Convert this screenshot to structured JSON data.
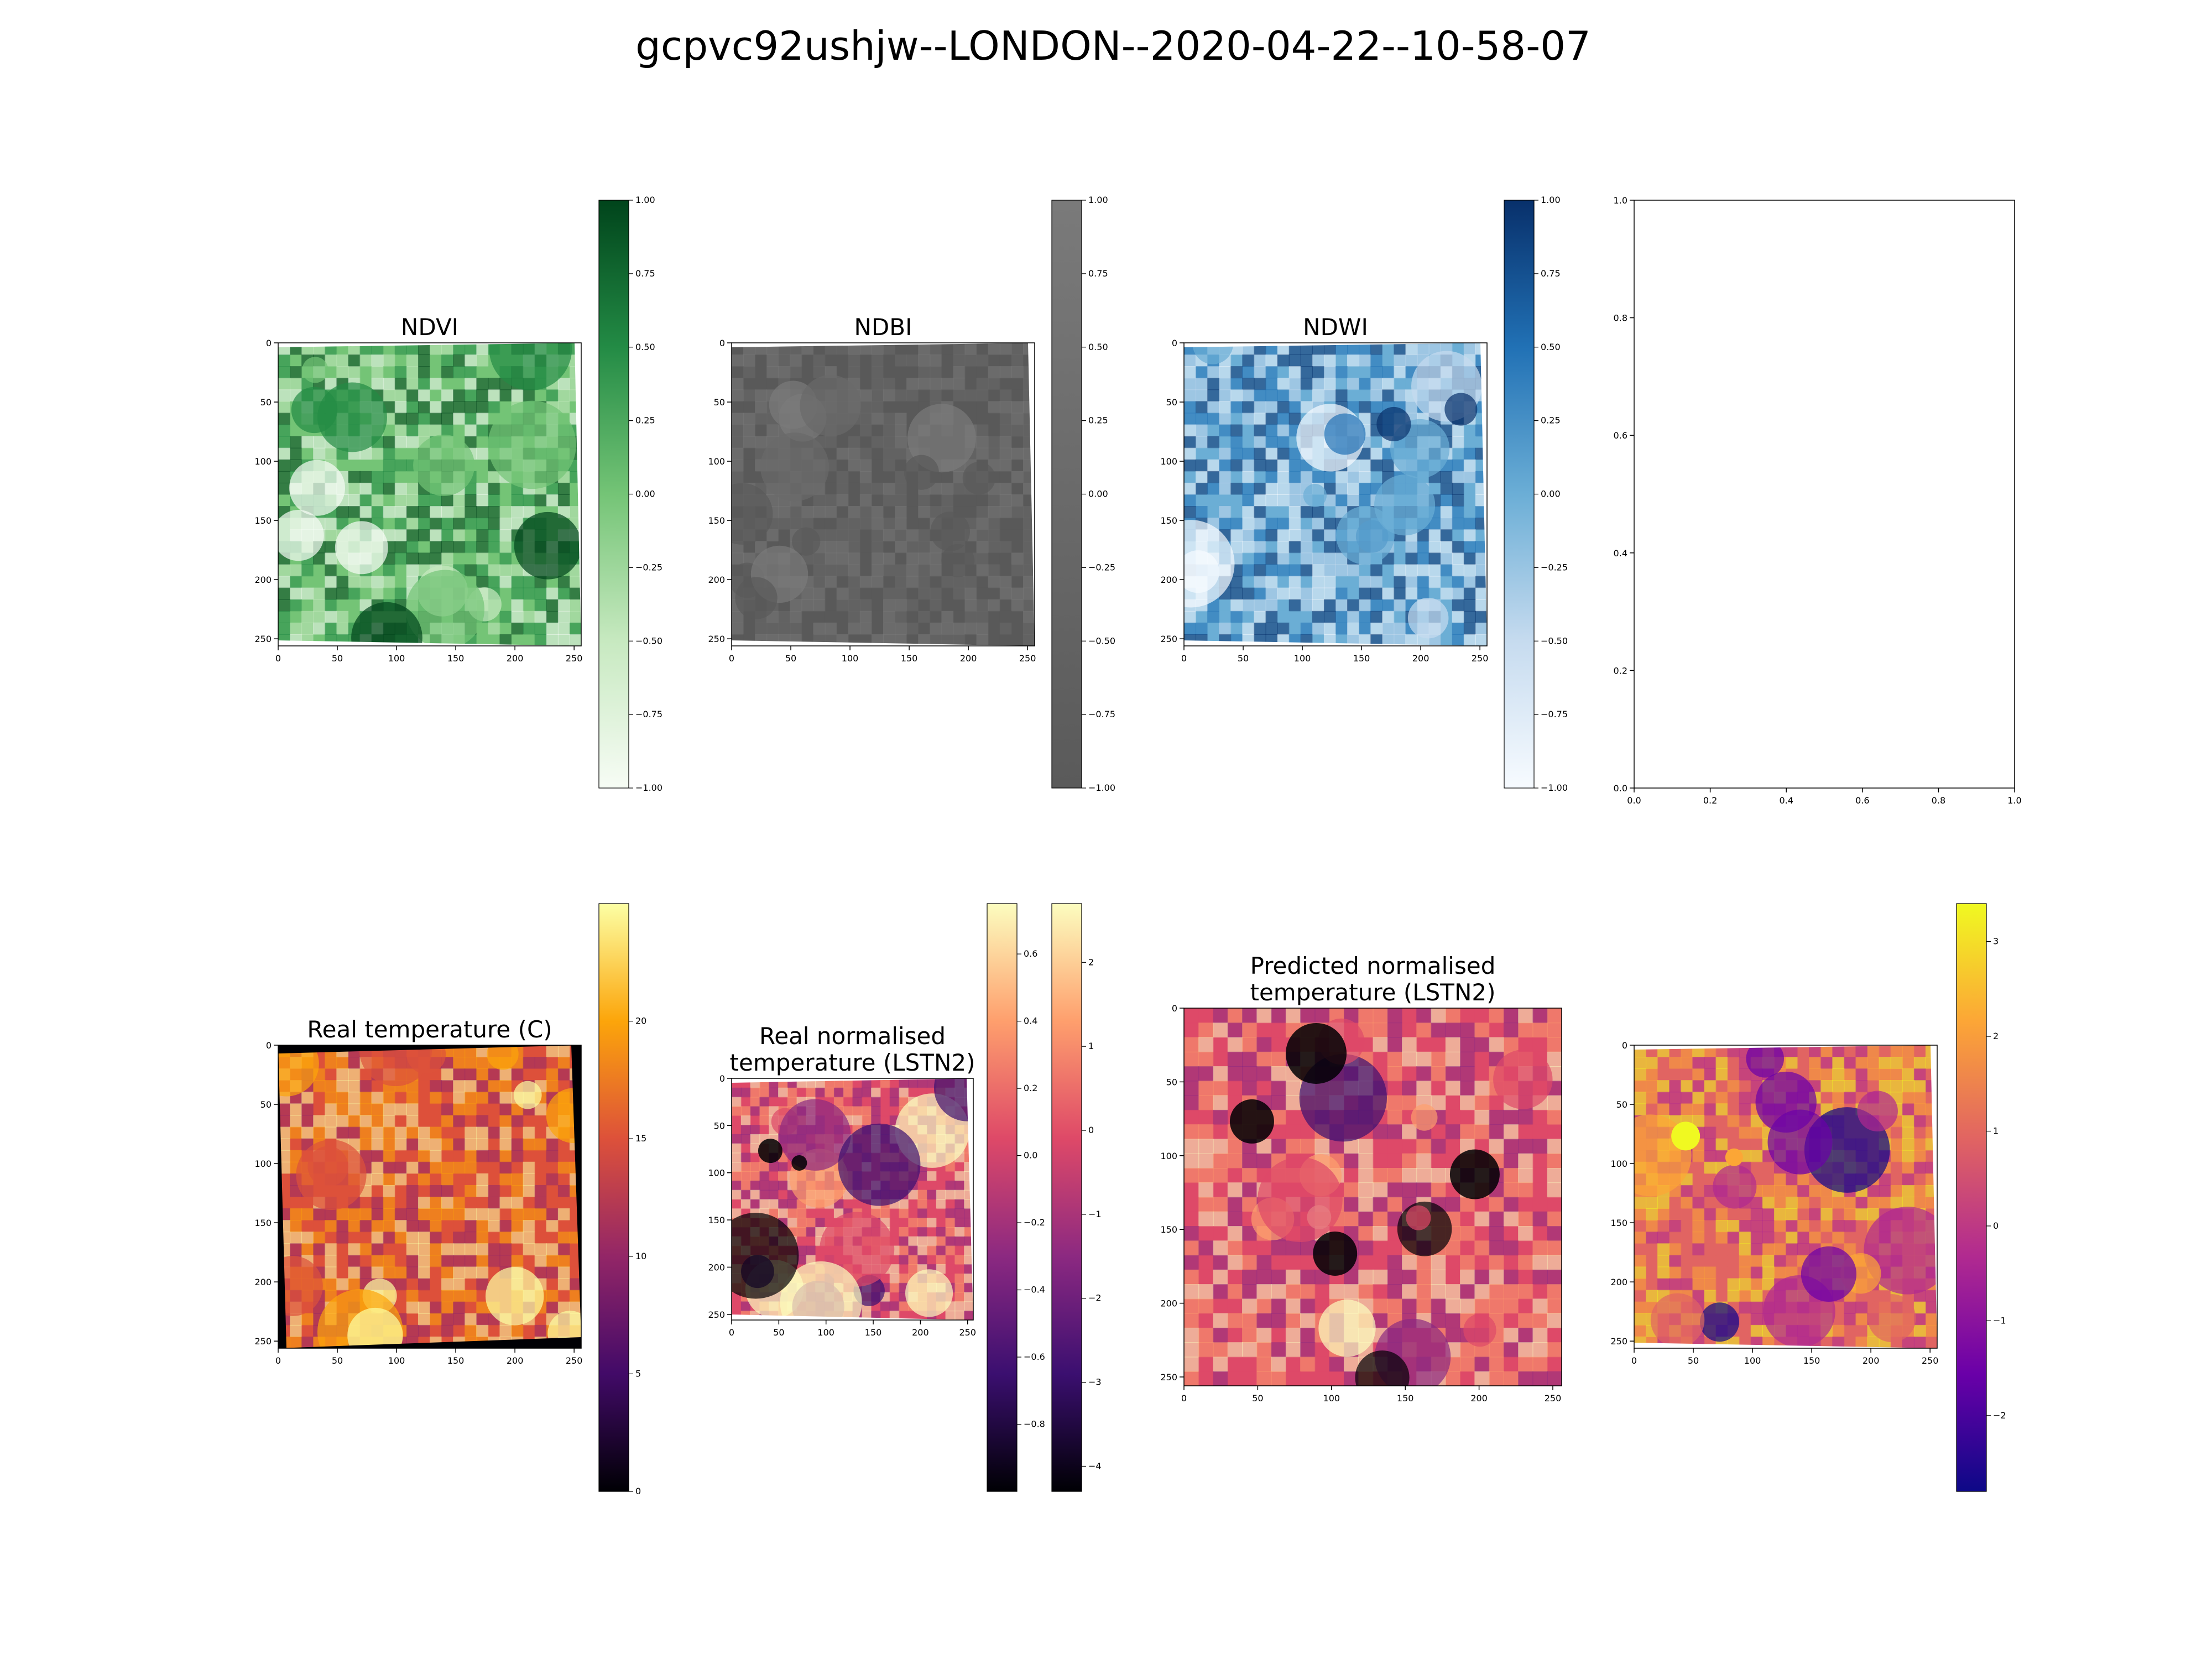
{
  "suptitle": "gcpvc92ushjw--LONDON--2020-04-22--10-58-07",
  "chart_data": [
    {
      "type": "heatmap",
      "title": "NDVI",
      "x_ticks": [
        "0",
        "50",
        "100",
        "150",
        "200",
        "250"
      ],
      "y_ticks": [
        "0",
        "50",
        "100",
        "150",
        "200",
        "250"
      ],
      "xlim": [
        0,
        256
      ],
      "ylim": [
        256,
        0
      ],
      "colormap": "Greens",
      "colors": [
        "#f7fcf5",
        "#c7e9c0",
        "#74c476",
        "#238b45",
        "#00441b"
      ],
      "colorbar": {
        "range": [
          -1.0,
          1.0
        ],
        "ticks": [
          "1.00",
          "0.75",
          "0.50",
          "0.25",
          "0.00",
          "−0.25",
          "−0.50",
          "−0.75",
          "−1.00"
        ]
      }
    },
    {
      "type": "heatmap",
      "title": "NDBI",
      "x_ticks": [
        "0",
        "50",
        "100",
        "150",
        "200",
        "250"
      ],
      "y_ticks": [
        "0",
        "50",
        "100",
        "150",
        "200",
        "250"
      ],
      "xlim": [
        0,
        256
      ],
      "ylim": [
        256,
        0
      ],
      "colormap": "Greys_r",
      "colors": [
        "#5a5a5a",
        "#6a6a6a",
        "#7a7a7a"
      ],
      "colorbar": {
        "range": [
          -1.0,
          1.0
        ],
        "ticks": [
          "1.00",
          "0.75",
          "0.50",
          "0.25",
          "0.00",
          "−0.25",
          "−0.50",
          "−0.75",
          "−1.00"
        ]
      }
    },
    {
      "type": "heatmap",
      "title": "NDWI",
      "x_ticks": [
        "0",
        "50",
        "100",
        "150",
        "200",
        "250"
      ],
      "y_ticks": [
        "0",
        "50",
        "100",
        "150",
        "200",
        "250"
      ],
      "xlim": [
        0,
        256
      ],
      "ylim": [
        256,
        0
      ],
      "colormap": "Blues",
      "colors": [
        "#f7fbff",
        "#c6dbef",
        "#6baed6",
        "#2171b5",
        "#08306b"
      ],
      "colorbar": {
        "range": [
          -1.0,
          1.0
        ],
        "ticks": [
          "1.00",
          "0.75",
          "0.50",
          "0.25",
          "0.00",
          "−0.25",
          "−0.50",
          "−0.75",
          "−1.00"
        ]
      }
    },
    {
      "type": "empty",
      "title": "",
      "x_ticks": [
        "0.0",
        "0.2",
        "0.4",
        "0.6",
        "0.8",
        "1.0"
      ],
      "y_ticks": [
        "0.0",
        "0.2",
        "0.4",
        "0.6",
        "0.8",
        "1.0"
      ],
      "xlim": [
        0,
        1
      ],
      "ylim": [
        0,
        1
      ]
    },
    {
      "type": "heatmap",
      "title": "Real temperature (C)",
      "x_ticks": [
        "0",
        "50",
        "100",
        "150",
        "200",
        "250"
      ],
      "y_ticks": [
        "0",
        "50",
        "100",
        "150",
        "200",
        "250"
      ],
      "xlim": [
        0,
        256
      ],
      "ylim": [
        256,
        0
      ],
      "colormap": "inferno",
      "colors": [
        "#000004",
        "#420a68",
        "#932667",
        "#dd513a",
        "#fca50a",
        "#fcffa4"
      ],
      "colorbar": {
        "range": [
          0,
          25
        ],
        "ticks": [
          "0",
          "5",
          "10",
          "15",
          "20"
        ]
      }
    },
    {
      "type": "heatmap",
      "title": "Real normalised\ntemperature (LSTN2)",
      "x_ticks": [
        "0",
        "50",
        "100",
        "150",
        "200",
        "250"
      ],
      "y_ticks": [
        "0",
        "50",
        "100",
        "150",
        "200",
        "250"
      ],
      "xlim": [
        0,
        256
      ],
      "ylim": [
        256,
        0
      ],
      "colormap": "magma",
      "colors": [
        "#000004",
        "#3b0f70",
        "#8c2981",
        "#de4968",
        "#fe9f6d",
        "#fcfdbf"
      ],
      "colorbar": {
        "range": [
          -1.0,
          0.75
        ],
        "ticks": [
          "0.6",
          "0.4",
          "0.2",
          "0.0",
          "−0.2",
          "−0.4",
          "−0.6",
          "−0.8"
        ]
      },
      "colorbar2": {
        "range": [
          -4.3,
          2.7
        ],
        "ticks": [
          "2",
          "1",
          "0",
          "−1",
          "−2",
          "−3",
          "−4"
        ]
      }
    },
    {
      "type": "heatmap",
      "title": "Predicted normalised\ntemperature (LSTN2)",
      "x_ticks": [
        "0",
        "50",
        "100",
        "150",
        "200",
        "250"
      ],
      "y_ticks": [
        "0",
        "50",
        "100",
        "150",
        "200",
        "250"
      ],
      "xlim": [
        0,
        256
      ],
      "ylim": [
        256,
        0
      ],
      "colormap": "magma",
      "colors": [
        "#000004",
        "#3b0f70",
        "#8c2981",
        "#de4968",
        "#fe9f6d",
        "#fcfdbf"
      ]
    },
    {
      "type": "heatmap",
      "title": "",
      "x_ticks": [
        "0",
        "50",
        "100",
        "150",
        "200",
        "250"
      ],
      "y_ticks": [
        "0",
        "50",
        "100",
        "150",
        "200",
        "250"
      ],
      "xlim": [
        0,
        256
      ],
      "ylim": [
        256,
        0
      ],
      "colormap": "plasma",
      "colors": [
        "#0d0887",
        "#6a00a8",
        "#b12a90",
        "#e16462",
        "#fca636",
        "#f0f921"
      ],
      "colorbar": {
        "range": [
          -2.8,
          3.4
        ],
        "ticks": [
          "3",
          "2",
          "1",
          "0",
          "−1",
          "−2"
        ]
      }
    }
  ]
}
